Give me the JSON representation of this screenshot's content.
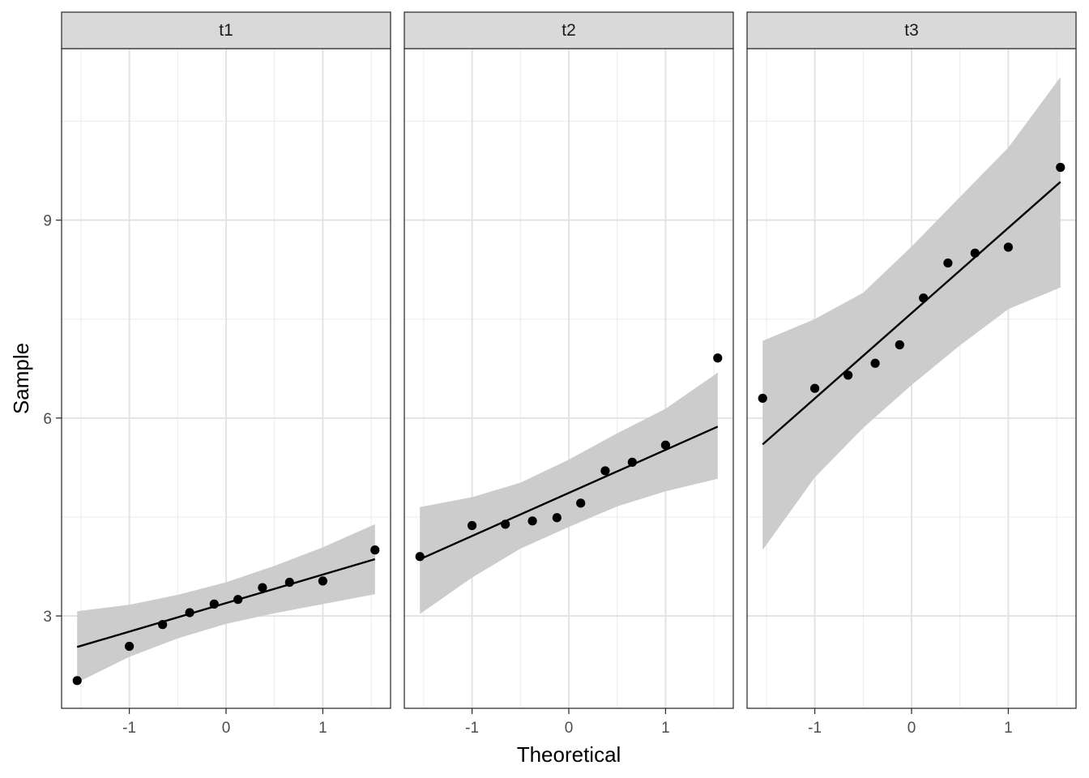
{
  "chart_data": {
    "type": "scatter",
    "xlabel": "Theoretical",
    "ylabel": "Sample",
    "xlim": [
      -1.7,
      1.7
    ],
    "ylim": [
      1.6,
      11.6
    ],
    "x_ticks": [
      -1,
      0,
      1
    ],
    "x_tick_labels": [
      "-1",
      "0",
      "1"
    ],
    "y_ticks": [
      3,
      6,
      9
    ],
    "y_tick_labels": [
      "3",
      "6",
      "9"
    ],
    "grid": true,
    "band_color": "#cccccc",
    "line_color": "#000000",
    "point_color": "#000000",
    "strip_color": "#d9d9d9",
    "panels": [
      {
        "label": "t1",
        "points": {
          "x": [
            -1.539,
            -1.0,
            -0.656,
            -0.376,
            -0.123,
            0.123,
            0.376,
            0.656,
            1.0,
            1.539
          ],
          "y": [
            2.02,
            2.54,
            2.87,
            3.05,
            3.18,
            3.25,
            3.43,
            3.51,
            3.53,
            4.0
          ]
        },
        "line": {
          "x": [
            -1.539,
            1.539
          ],
          "y": [
            2.53,
            3.86
          ]
        },
        "band": {
          "x": [
            -1.539,
            -1.0,
            -0.5,
            0.0,
            0.5,
            1.0,
            1.539
          ],
          "lower": [
            1.99,
            2.38,
            2.66,
            2.88,
            3.04,
            3.18,
            3.33
          ],
          "upper": [
            3.07,
            3.17,
            3.32,
            3.51,
            3.76,
            4.04,
            4.39
          ]
        }
      },
      {
        "label": "t2",
        "points": {
          "x": [
            -1.539,
            -1.0,
            -0.656,
            -0.376,
            -0.123,
            0.123,
            0.376,
            0.656,
            1.0,
            1.539
          ],
          "y": [
            3.9,
            4.37,
            4.39,
            4.44,
            4.49,
            4.71,
            5.2,
            5.33,
            5.59,
            6.91
          ]
        },
        "line": {
          "x": [
            -1.539,
            1.539
          ],
          "y": [
            3.86,
            5.87
          ]
        },
        "band": {
          "x": [
            -1.539,
            -1.0,
            -0.5,
            0.0,
            0.5,
            1.0,
            1.539
          ],
          "lower": [
            3.03,
            3.58,
            4.02,
            4.35,
            4.66,
            4.89,
            5.08
          ],
          "upper": [
            4.65,
            4.8,
            5.02,
            5.37,
            5.77,
            6.14,
            6.69
          ]
        }
      },
      {
        "label": "t3",
        "points": {
          "x": [
            -1.539,
            -1.0,
            -0.656,
            -0.376,
            -0.123,
            0.123,
            0.376,
            0.656,
            1.0,
            1.539
          ],
          "y": [
            6.3,
            6.45,
            6.65,
            6.83,
            7.11,
            7.82,
            8.35,
            8.5,
            8.59,
            9.8
          ]
        },
        "line": {
          "x": [
            -1.539,
            1.539
          ],
          "y": [
            5.6,
            9.58
          ]
        },
        "band": {
          "x": [
            -1.539,
            -1.0,
            -0.5,
            0.0,
            0.5,
            1.0,
            1.539
          ],
          "lower": [
            4.0,
            5.1,
            5.85,
            6.5,
            7.1,
            7.65,
            7.98
          ],
          "upper": [
            7.17,
            7.5,
            7.9,
            8.6,
            9.35,
            10.1,
            11.17
          ]
        }
      }
    ]
  }
}
